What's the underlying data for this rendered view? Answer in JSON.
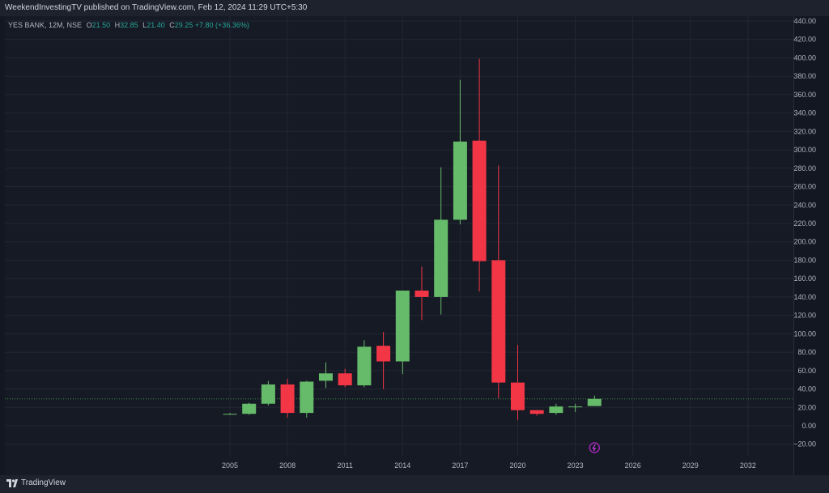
{
  "header": {
    "published_text": "WeekendInvestingTV published on TradingView.com, Feb 12, 2024 11:29 UTC+5:30"
  },
  "legend": {
    "symbol_text": "YES BANK, 12M, NSE",
    "open_label": "O",
    "open": "21.50",
    "high_label": "H",
    "high": "32.85",
    "low_label": "L",
    "low": "21.40",
    "close_label": "C",
    "close": "29.25",
    "change": "+7.80 (+36.36%)"
  },
  "footer": {
    "brand": "TradingView"
  },
  "colors": {
    "up": "#66bb6a",
    "down": "#f23645",
    "background": "#161a25",
    "grid": "#232732",
    "axis_text": "#b2b5be",
    "last_price_line": "#4caf50"
  },
  "chart_data": {
    "type": "candlestick",
    "symbol": "YES BANK",
    "interval": "12M",
    "exchange": "NSE",
    "x_ticks": [
      "2005",
      "2008",
      "2011",
      "2014",
      "2017",
      "2020",
      "2023",
      "2026",
      "2029",
      "2032"
    ],
    "y_ticks": [
      "440.00",
      "420.00",
      "400.00",
      "380.00",
      "360.00",
      "340.00",
      "320.00",
      "300.00",
      "280.00",
      "260.00",
      "240.00",
      "220.00",
      "200.00",
      "180.00",
      "160.00",
      "140.00",
      "120.00",
      "100.00",
      "80.00",
      "60.00",
      "40.00",
      "20.00",
      "0.00",
      "−20.00"
    ],
    "ylim": [
      -25,
      445
    ],
    "last_price": 29.25,
    "candles": [
      {
        "year": 2005,
        "open": 13,
        "high": 14,
        "low": 12,
        "close": 13
      },
      {
        "year": 2006,
        "open": 13,
        "high": 25,
        "low": 12,
        "close": 24
      },
      {
        "year": 2007,
        "open": 24,
        "high": 49,
        "low": 22,
        "close": 45
      },
      {
        "year": 2008,
        "open": 45,
        "high": 51,
        "low": 9,
        "close": 14
      },
      {
        "year": 2009,
        "open": 14,
        "high": 49,
        "low": 9,
        "close": 48
      },
      {
        "year": 2010,
        "open": 49,
        "high": 69,
        "low": 41,
        "close": 57
      },
      {
        "year": 2011,
        "open": 57,
        "high": 62,
        "low": 42,
        "close": 44
      },
      {
        "year": 2012,
        "open": 44,
        "high": 93,
        "low": 42,
        "close": 86
      },
      {
        "year": 2013,
        "open": 87,
        "high": 102,
        "low": 40,
        "close": 70
      },
      {
        "year": 2014,
        "open": 70,
        "high": 147,
        "low": 56,
        "close": 147
      },
      {
        "year": 2015,
        "open": 147,
        "high": 173,
        "low": 115,
        "close": 140
      },
      {
        "year": 2016,
        "open": 140,
        "high": 281,
        "low": 121,
        "close": 224
      },
      {
        "year": 2017,
        "open": 224,
        "high": 376,
        "low": 219,
        "close": 309
      },
      {
        "year": 2018,
        "open": 310,
        "high": 399,
        "low": 146,
        "close": 179
      },
      {
        "year": 2019,
        "open": 180,
        "high": 283,
        "low": 30,
        "close": 47
      },
      {
        "year": 2020,
        "open": 47,
        "high": 88,
        "low": 6,
        "close": 17
      },
      {
        "year": 2021,
        "open": 17,
        "high": 17,
        "low": 11,
        "close": 13
      },
      {
        "year": 2022,
        "open": 14,
        "high": 24,
        "low": 12,
        "close": 21
      },
      {
        "year": 2023,
        "open": 21,
        "high": 24,
        "low": 15,
        "close": 21
      },
      {
        "year": 2024,
        "open": 21.5,
        "high": 32.85,
        "low": 21.4,
        "close": 29.25
      }
    ]
  }
}
